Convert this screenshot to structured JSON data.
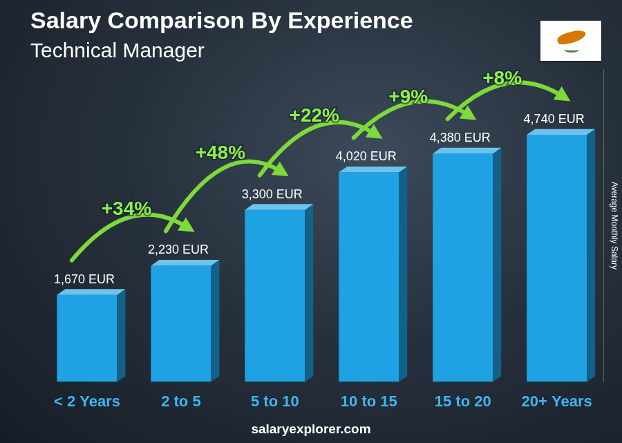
{
  "chart_data": {
    "type": "bar",
    "title": "Salary Comparison By Experience",
    "subtitle": "Technical Manager",
    "y_label": "Average Monthly Salary",
    "footer": "salaryexplorer.com",
    "categories": [
      "< 2 Years",
      "2 to 5",
      "5 to 10",
      "10 to 15",
      "15 to 20",
      "20+ Years"
    ],
    "values": [
      1670,
      2230,
      3300,
      4020,
      4380,
      4740
    ],
    "value_labels": [
      "1,670 EUR",
      "2,230 EUR",
      "3,300 EUR",
      "4,020 EUR",
      "4,380 EUR",
      "4,740 EUR"
    ],
    "annotations": [
      "+34%",
      "+48%",
      "+22%",
      "+9%",
      "+8%"
    ],
    "color": "#1ea2e4",
    "ylim": [
      0,
      6000
    ],
    "yticks": [],
    "grid": false,
    "data_labels": true,
    "tick_labels": "x"
  }
}
